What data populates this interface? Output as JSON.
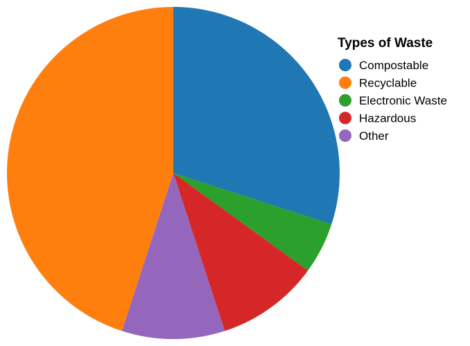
{
  "chart_data": {
    "type": "pie",
    "legend_title": "Types of Waste",
    "legend_position": "top-right",
    "start_angle_deg": 0,
    "direction": "clockwise",
    "categories": [
      "Compostable",
      "Recyclable",
      "Electronic Waste",
      "Hazardous",
      "Other"
    ],
    "values": [
      30,
      45,
      5,
      10,
      10
    ],
    "colors": [
      "#1f77b4",
      "#ff7f0e",
      "#2ca02c",
      "#d62728",
      "#9467bd"
    ],
    "slice_order": [
      "Compostable",
      "Electronic Waste",
      "Hazardous",
      "Other",
      "Recyclable"
    ]
  }
}
